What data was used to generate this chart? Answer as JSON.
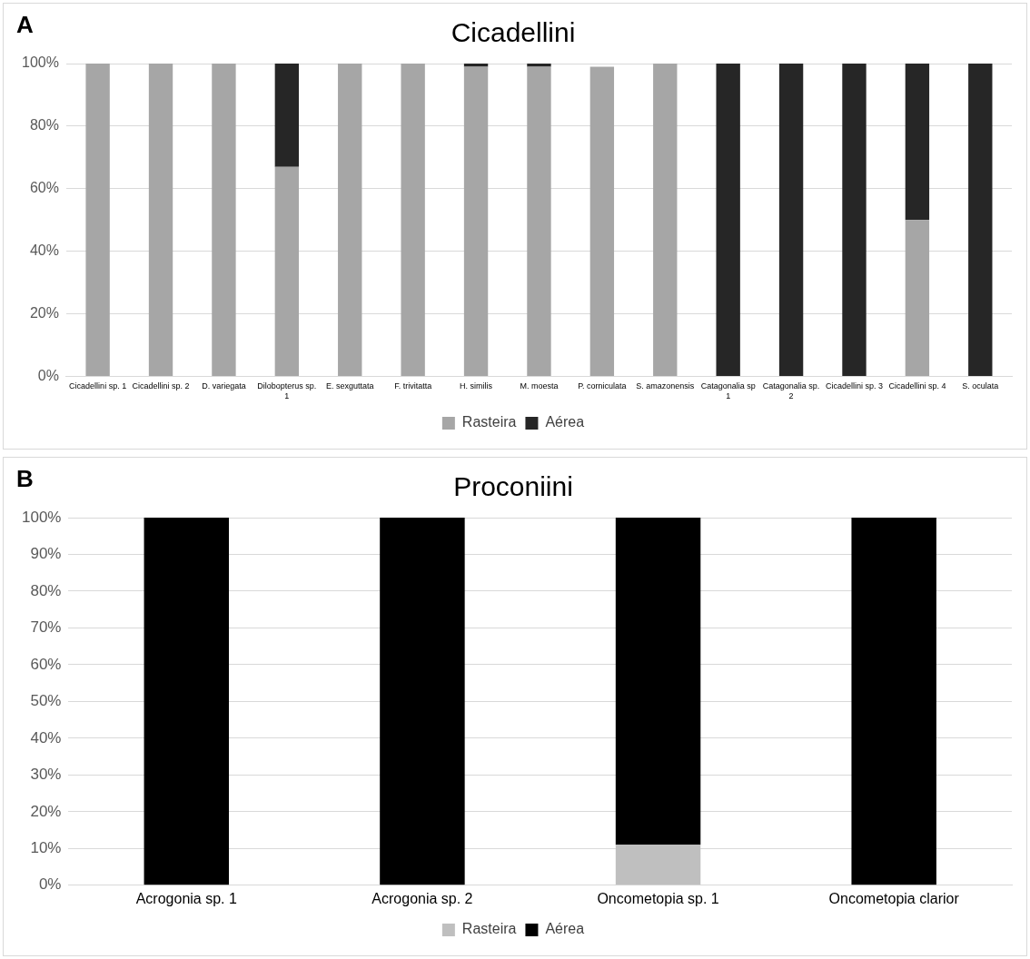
{
  "chart_data": [
    {
      "type": "bar",
      "title": "Cicadellini",
      "annotations": [
        "A"
      ],
      "stacked": true,
      "grid": "y",
      "legend": "bottom",
      "categories": [
        "Cicadellini sp. 1",
        "Cicadellini sp. 2",
        "D. variegata",
        "Dilobopterus sp. 1",
        "E. sexguttata",
        "F. trivitatta",
        "H. similis",
        "M. moesta",
        "P. corniculata",
        "S. amazonensis",
        "Catagonalia sp 1",
        "Catagonalia sp. 2",
        "Cicadellini sp. 3",
        "Cicadellini sp. 4",
        "S. oculata"
      ],
      "series": [
        {
          "name": "Rasteira",
          "color": "#a6a6a6",
          "values": [
            100,
            100,
            100,
            67,
            100,
            100,
            99,
            99,
            99,
            100,
            0,
            0,
            0,
            50,
            0
          ]
        },
        {
          "name": "Aérea",
          "color": "#262626",
          "values": [
            0,
            0,
            0,
            33,
            0,
            0,
            1,
            1,
            0,
            0,
            100,
            100,
            100,
            50,
            100
          ]
        }
      ],
      "ylim": [
        0,
        100
      ],
      "yticks": [
        {
          "value": 0,
          "label": "0%"
        },
        {
          "value": 20,
          "label": "20%"
        },
        {
          "value": 40,
          "label": "40%"
        },
        {
          "value": 60,
          "label": "60%"
        },
        {
          "value": 80,
          "label": "80%"
        },
        {
          "value": 100,
          "label": "100%"
        }
      ]
    },
    {
      "type": "bar",
      "title": "Proconiini",
      "annotations": [
        "B"
      ],
      "stacked": true,
      "grid": "y",
      "legend": "bottom",
      "categories": [
        "Acrogonia sp. 1",
        "Acrogonia sp. 2",
        "Oncometopia sp. 1",
        "Oncometopia clarior"
      ],
      "series": [
        {
          "name": "Rasteira",
          "color": "#bfbfbf",
          "values": [
            0,
            0,
            11,
            0
          ]
        },
        {
          "name": "Aérea",
          "color": "#000000",
          "values": [
            100,
            100,
            89,
            100
          ]
        }
      ],
      "ylim": [
        0,
        100
      ],
      "yticks": [
        {
          "value": 0,
          "label": "0%"
        },
        {
          "value": 10,
          "label": "10%"
        },
        {
          "value": 20,
          "label": "20%"
        },
        {
          "value": 30,
          "label": "30%"
        },
        {
          "value": 40,
          "label": "40%"
        },
        {
          "value": 50,
          "label": "50%"
        },
        {
          "value": 60,
          "label": "60%"
        },
        {
          "value": 70,
          "label": "70%"
        },
        {
          "value": 80,
          "label": "80%"
        },
        {
          "value": 90,
          "label": "90%"
        },
        {
          "value": 100,
          "label": "100%"
        }
      ]
    }
  ]
}
